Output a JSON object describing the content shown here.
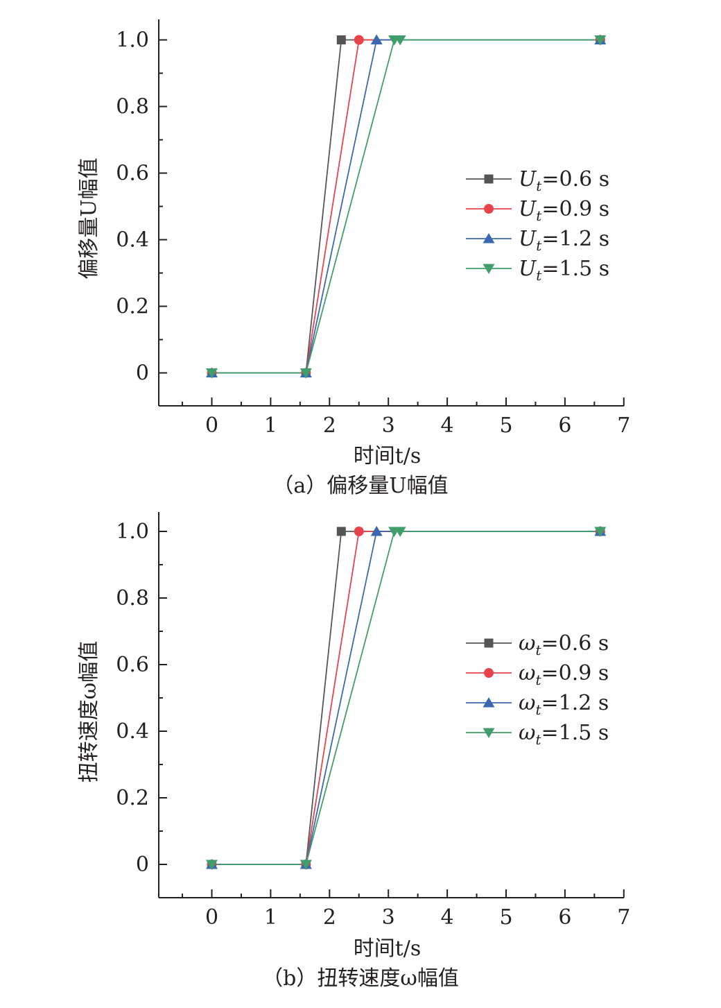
{
  "chart_data": [
    {
      "type": "line",
      "caption": "（a）偏移量U幅值",
      "xlabel": "时间t/s",
      "ylabel": "偏移量U幅值",
      "xlim": [
        -0.9,
        7
      ],
      "ylim": [
        -0.1,
        1.0
      ],
      "xticks": [
        "0",
        "1",
        "2",
        "3",
        "4",
        "5",
        "6",
        "7"
      ],
      "yticks": [
        "0",
        "0.2",
        "0.4",
        "0.6",
        "0.8",
        "1.0"
      ],
      "legend_position": "right",
      "grid": false,
      "series": [
        {
          "name": "Ut=0.6 s",
          "symbol": "U",
          "sub": "t",
          "value_text": "=0.6 s",
          "color": "#555555",
          "marker": "square",
          "x": [
            0,
            1.6,
            2.2,
            6.6
          ],
          "y": [
            0,
            0,
            1.0,
            1.0
          ]
        },
        {
          "name": "Ut=0.9 s",
          "symbol": "U",
          "sub": "t",
          "value_text": "=0.9 s",
          "color": "#e8434a",
          "marker": "circle",
          "x": [
            0,
            1.6,
            2.5,
            6.6
          ],
          "y": [
            0,
            0,
            1.0,
            1.0
          ]
        },
        {
          "name": "Ut=1.2 s",
          "symbol": "U",
          "sub": "t",
          "value_text": "=1.2 s",
          "color": "#3a68b0",
          "marker": "triangle-up",
          "x": [
            0,
            1.6,
            2.8,
            6.6
          ],
          "y": [
            0,
            0,
            1.0,
            1.0
          ]
        },
        {
          "name": "Ut=1.5 s",
          "symbol": "U",
          "sub": "t",
          "value_text": "=1.5 s",
          "color": "#3f9e6a",
          "marker": "triangle-down",
          "x": [
            0,
            1.6,
            3.1,
            3.2,
            6.6
          ],
          "y": [
            0,
            0,
            1.0,
            1.0,
            1.0
          ]
        }
      ]
    },
    {
      "type": "line",
      "caption": "（b）扭转速度ω幅值",
      "xlabel": "时间t/s",
      "ylabel": "扭转速度ω幅值",
      "xlim": [
        -0.9,
        7
      ],
      "ylim": [
        -0.1,
        1.0
      ],
      "xticks": [
        "0",
        "1",
        "2",
        "3",
        "4",
        "5",
        "6",
        "7"
      ],
      "yticks": [
        "0",
        "0.2",
        "0.4",
        "0.6",
        "0.8",
        "1.0"
      ],
      "legend_position": "right",
      "grid": false,
      "series": [
        {
          "name": "ωt=0.6 s",
          "symbol": "ω",
          "sub": "t",
          "value_text": "=0.6 s",
          "color": "#555555",
          "marker": "square",
          "x": [
            0,
            1.6,
            2.2,
            6.6
          ],
          "y": [
            0,
            0,
            1.0,
            1.0
          ]
        },
        {
          "name": "ωt=0.9 s",
          "symbol": "ω",
          "sub": "t",
          "value_text": "=0.9 s",
          "color": "#e8434a",
          "marker": "circle",
          "x": [
            0,
            1.6,
            2.5,
            6.6
          ],
          "y": [
            0,
            0,
            1.0,
            1.0
          ]
        },
        {
          "name": "ωt=1.2 s",
          "symbol": "ω",
          "sub": "t",
          "value_text": "=1.2 s",
          "color": "#3a68b0",
          "marker": "triangle-up",
          "x": [
            0,
            1.6,
            2.8,
            6.6
          ],
          "y": [
            0,
            0,
            1.0,
            1.0
          ]
        },
        {
          "name": "ωt=1.5 s",
          "symbol": "ω",
          "sub": "t",
          "value_text": "=1.5 s",
          "color": "#3f9e6a",
          "marker": "triangle-down",
          "x": [
            0,
            1.6,
            3.1,
            3.2,
            6.6
          ],
          "y": [
            0,
            0,
            1.0,
            1.0,
            1.0
          ]
        }
      ]
    }
  ]
}
